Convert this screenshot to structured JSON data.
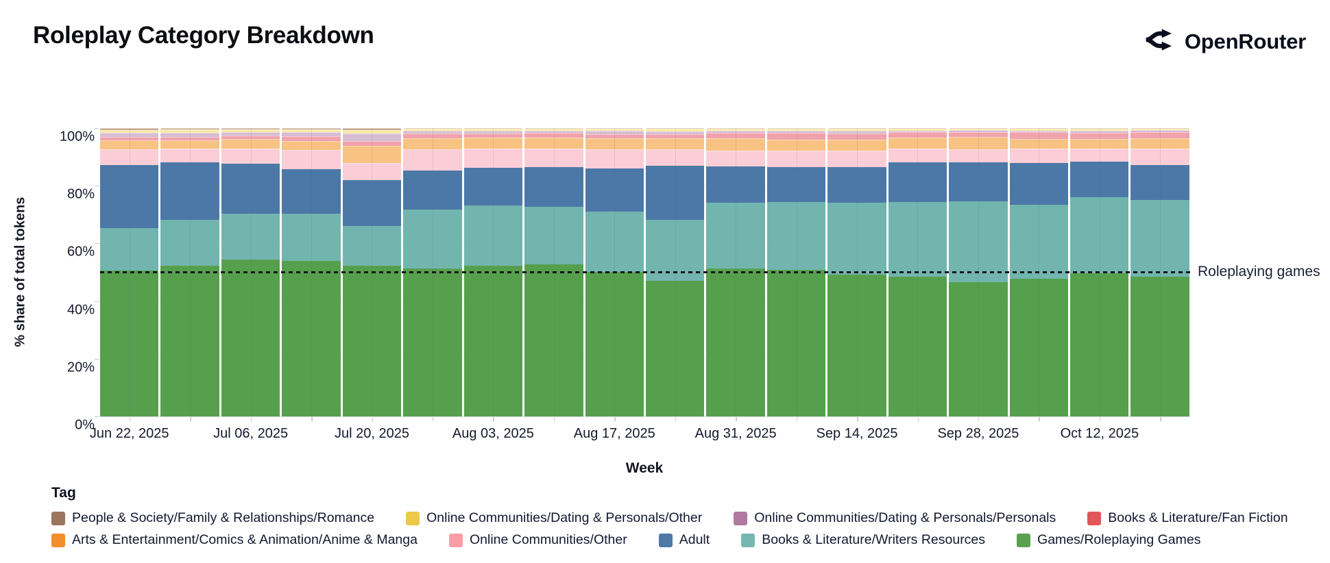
{
  "header": {
    "title": "Roleplay Category Breakdown",
    "logo_text": "OpenRouter"
  },
  "chart": {
    "y_axis": {
      "label": "% share of total tokens",
      "ticks": [
        "0%",
        "20%",
        "40%",
        "60%",
        "80%",
        "100%"
      ]
    },
    "x_axis": {
      "label": "Week"
    },
    "annotation": {
      "label": "Roleplaying games",
      "value": 50
    },
    "legend": {
      "title": "Tag",
      "rows": [
        [
          8,
          7,
          6,
          5
        ],
        [
          4,
          3,
          2,
          1,
          0
        ]
      ]
    }
  },
  "chart_data": {
    "type": "bar",
    "stacked": true,
    "unit": "%",
    "title": "Roleplay Category Breakdown",
    "xlabel": "Week",
    "ylabel": "% share of total tokens",
    "ylim": [
      0,
      100
    ],
    "label_every": 2,
    "x": [
      "Jun 22, 2025",
      "Jun 29, 2025",
      "Jul 06, 2025",
      "Jul 13, 2025",
      "Jul 20, 2025",
      "Jul 27, 2025",
      "Aug 03, 2025",
      "Aug 10, 2025",
      "Aug 17, 2025",
      "Aug 24, 2025",
      "Aug 31, 2025",
      "Sep 07, 2025",
      "Sep 14, 2025",
      "Sep 21, 2025",
      "Sep 28, 2025",
      "Oct 05, 2025",
      "Oct 12, 2025",
      "Oct 19, 2025"
    ],
    "x_tick_labels_shown": [
      "Jun 22, 2025",
      "Jul 06, 2025",
      "Jul 20, 2025",
      "Aug 03, 2025",
      "Aug 17, 2025",
      "Aug 31, 2025",
      "Sep 14, 2025",
      "Sep 28, 2025",
      "Oct 12, 2025"
    ],
    "annotation_line": {
      "label": "Roleplaying games",
      "y": 50
    },
    "series": [
      {
        "name": "Games/Roleplaying Games",
        "slug": "games-roleplaying-games",
        "legend_color": "#59A14F",
        "bar_color": "#56A04D",
        "values": [
          50.6,
          52.2,
          54.3,
          54.0,
          52.2,
          51.3,
          52.4,
          52.8,
          50.2,
          47.0,
          51.4,
          50.8,
          49.2,
          48.6,
          46.6,
          47.8,
          49.6,
          48.6
        ]
      },
      {
        "name": "Books & Literature/Writers Resources",
        "slug": "books-literature-writers-resources",
        "legend_color": "#76B7B2",
        "bar_color": "#72B5AF",
        "values": [
          14.8,
          16.0,
          16.1,
          16.2,
          13.8,
          20.5,
          20.8,
          20.1,
          20.9,
          21.2,
          22.7,
          23.5,
          25.0,
          25.9,
          28.0,
          25.8,
          26.5,
          26.5
        ]
      },
      {
        "name": "Adult",
        "slug": "adult",
        "legend_color": "#4E79A7",
        "bar_color": "#4C78A7",
        "values": [
          21.8,
          20.0,
          17.2,
          15.5,
          16.0,
          13.5,
          13.2,
          13.6,
          15.0,
          18.9,
          12.7,
          12.3,
          12.3,
          13.7,
          13.7,
          14.6,
          12.3,
          12.1
        ]
      },
      {
        "name": "Online Communities/Other",
        "slug": "online-communities-other",
        "legend_color": "#FF9DA7",
        "bar_color": "#FBCDD6",
        "values": [
          5.4,
          4.6,
          5.3,
          6.6,
          5.8,
          7.5,
          6.7,
          6.6,
          6.7,
          5.7,
          5.6,
          5.6,
          5.6,
          4.9,
          4.5,
          4.9,
          4.4,
          5.7
        ]
      },
      {
        "name": "Arts & Entertainment/Comics & Animation/Anime & Manga",
        "slug": "anime-manga",
        "legend_color": "#F28E2B",
        "bar_color": "#F8C283",
        "values": [
          3.1,
          2.9,
          3.4,
          3.2,
          6.1,
          3.7,
          3.8,
          3.8,
          3.7,
          3.8,
          4.1,
          3.9,
          3.8,
          3.8,
          4.2,
          3.4,
          3.4,
          3.6
        ]
      },
      {
        "name": "Books & Literature/Fan Fiction",
        "slug": "fan-fiction",
        "legend_color": "#E15759",
        "bar_color": "#F0A3AC",
        "values": [
          1.3,
          1.3,
          1.2,
          1.6,
          1.5,
          1.8,
          1.4,
          1.5,
          1.6,
          1.4,
          2.0,
          2.3,
          2.2,
          1.8,
          1.8,
          2.2,
          2.1,
          2.3
        ]
      },
      {
        "name": "Online Communities/Dating & Personals/Personals",
        "slug": "dating-personals-personals",
        "legend_color": "#B07AA1",
        "bar_color": "#D7BDD4",
        "values": [
          1.3,
          1.3,
          1.2,
          1.5,
          2.8,
          0.8,
          1.0,
          0.9,
          1.0,
          1.0,
          0.8,
          0.7,
          1.0,
          0.6,
          0.6,
          0.6,
          0.8,
          0.7
        ]
      },
      {
        "name": "Online Communities/Dating & Personals/Other",
        "slug": "dating-personals-other",
        "legend_color": "#EDC948",
        "bar_color": "#F8E9A8",
        "values": [
          0.9,
          1.2,
          0.9,
          1.0,
          1.2,
          0.8,
          0.6,
          0.6,
          0.8,
          0.9,
          0.6,
          0.7,
          0.7,
          0.6,
          0.5,
          0.7,
          0.7,
          0.4
        ]
      },
      {
        "name": "People & Society/Family & Relationships/Romance",
        "slug": "romance",
        "legend_color": "#9C755F",
        "bar_color": "#C5A98E",
        "values": [
          0.8,
          0.5,
          0.4,
          0.4,
          0.6,
          0.1,
          0.1,
          0.1,
          0.1,
          0.1,
          0.1,
          0.2,
          0.2,
          0.1,
          0.1,
          0.1,
          0.2,
          0.1
        ]
      }
    ]
  }
}
